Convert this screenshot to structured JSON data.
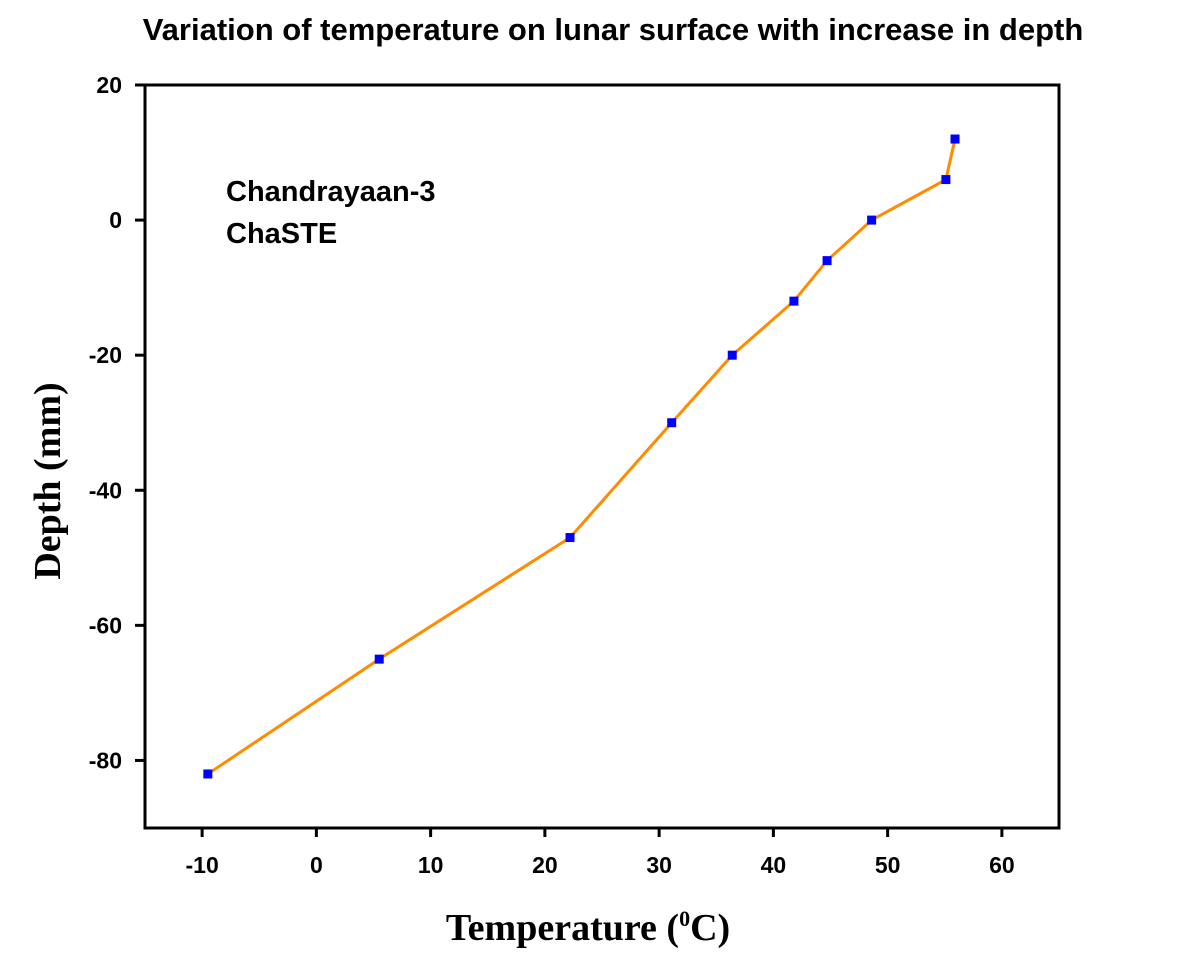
{
  "chart_data": {
    "type": "line",
    "title": "Variation of temperature on lunar surface with increase in depth",
    "xlabel_main": "Temperature (",
    "xlabel_sup": "0",
    "xlabel_end": "C)",
    "ylabel": "Depth (mm)",
    "xlim": [
      -15,
      65
    ],
    "ylim": [
      -90,
      20
    ],
    "x_ticks": [
      -10,
      0,
      10,
      20,
      30,
      40,
      50,
      60
    ],
    "y_ticks": [
      20,
      0,
      -20,
      -40,
      -60,
      -80
    ],
    "annotations": [
      "Chandrayaan-3",
      "ChaSTE"
    ],
    "grid": false,
    "series": [
      {
        "line_color": "#ff8c00",
        "marker_color": "#0000ff",
        "points": [
          {
            "x": -9.5,
            "y": -82
          },
          {
            "x": 5.5,
            "y": -65
          },
          {
            "x": 22.2,
            "y": -47
          },
          {
            "x": 31.1,
            "y": -30
          },
          {
            "x": 36.4,
            "y": -20
          },
          {
            "x": 41.8,
            "y": -12
          },
          {
            "x": 44.7,
            "y": -6
          },
          {
            "x": 48.6,
            "y": 0
          },
          {
            "x": 55.1,
            "y": 6
          },
          {
            "x": 55.9,
            "y": 12
          }
        ]
      }
    ]
  }
}
